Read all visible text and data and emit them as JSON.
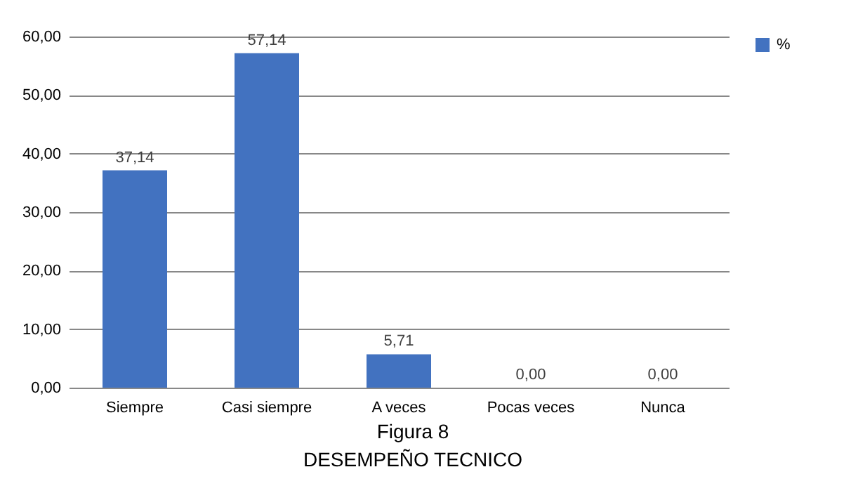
{
  "chart_data": {
    "type": "bar",
    "categories": [
      "Siempre",
      "Casi siempre",
      "A veces",
      "Pocas veces",
      "Nunca"
    ],
    "series": [
      {
        "name": "%",
        "color": "#4272c0",
        "values": [
          37.14,
          57.14,
          5.71,
          0,
          0
        ],
        "value_labels": [
          "37,14",
          "57,14",
          "5,71",
          "0,00",
          "0,00"
        ]
      }
    ],
    "ylim": [
      0,
      60
    ],
    "yticks": [
      {
        "value": 0,
        "label": "0,00"
      },
      {
        "value": 10,
        "label": "10,00"
      },
      {
        "value": 20,
        "label": "20,00"
      },
      {
        "value": 30,
        "label": "30,00"
      },
      {
        "value": 40,
        "label": "40,00"
      },
      {
        "value": 50,
        "label": "50,00"
      },
      {
        "value": 60,
        "label": "60,00"
      }
    ],
    "grid": "y",
    "legend": "right",
    "annotations": [
      "Figura 8",
      "DESEMPEÑO TECNICO"
    ]
  }
}
